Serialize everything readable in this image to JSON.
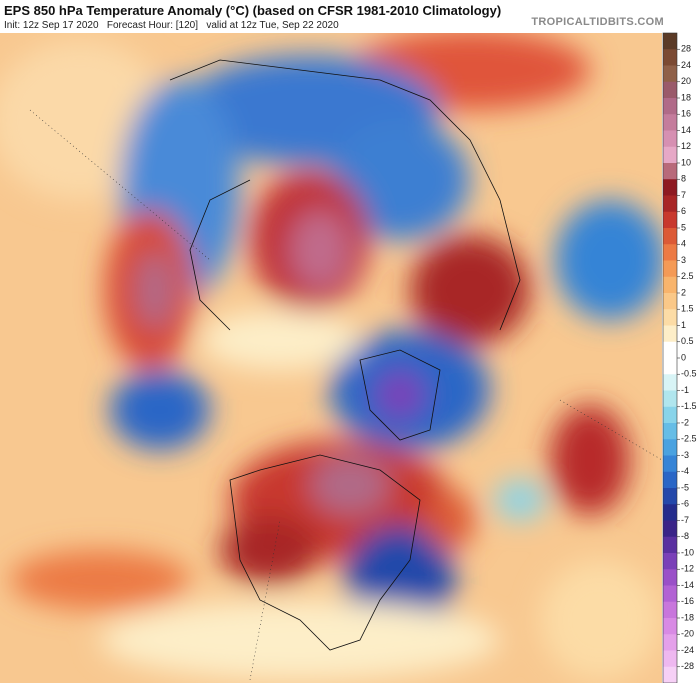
{
  "header": {
    "title": "EPS 850 hPa Temperature Anomaly (°C) (based on CFSR 1981-2010 Climatology)",
    "subtitle": "Init: 12z Sep 17 2020   Forecast Hour: [120]   valid at 12z Tue, Sep 22 2020",
    "watermark": "TROPICALTIDBITS.COM"
  },
  "colorbar": {
    "labels": [
      "28",
      "24",
      "20",
      "18",
      "16",
      "14",
      "12",
      "10",
      "8",
      "7",
      "6",
      "5",
      "4",
      "3",
      "2.5",
      "2",
      "1.5",
      "1",
      "0.5",
      "0",
      "-0.5",
      "-1",
      "-1.5",
      "-2",
      "-2.5",
      "-3",
      "-4",
      "-5",
      "-6",
      "-7",
      "-8",
      "-10",
      "-12",
      "-14",
      "-16",
      "-18",
      "-20",
      "-24",
      "-28"
    ],
    "colors": [
      "#5b3a26",
      "#7b4a33",
      "#8f6048",
      "#9a5a6a",
      "#b06a88",
      "#c47c9c",
      "#d690b2",
      "#e6a8c6",
      "#b86a7a",
      "#8e1a22",
      "#a82626",
      "#c8392e",
      "#dc5a36",
      "#ec7a44",
      "#f49a56",
      "#f8b46c",
      "#fac888",
      "#fcdca6",
      "#fdeec8",
      "#ffffff",
      "#ffffff",
      "#d8f4f6",
      "#b0e6ee",
      "#88d4ea",
      "#66bde6",
      "#4aa2e0",
      "#3684d6",
      "#2a66c6",
      "#2448aa",
      "#242c8c",
      "#3a2488",
      "#5a30a0",
      "#7a40b8",
      "#9a50c8",
      "#b262d4",
      "#c876dc",
      "#d88ae4",
      "#e4a0ea",
      "#eeb8f0",
      "#f6d0f6"
    ]
  }
}
